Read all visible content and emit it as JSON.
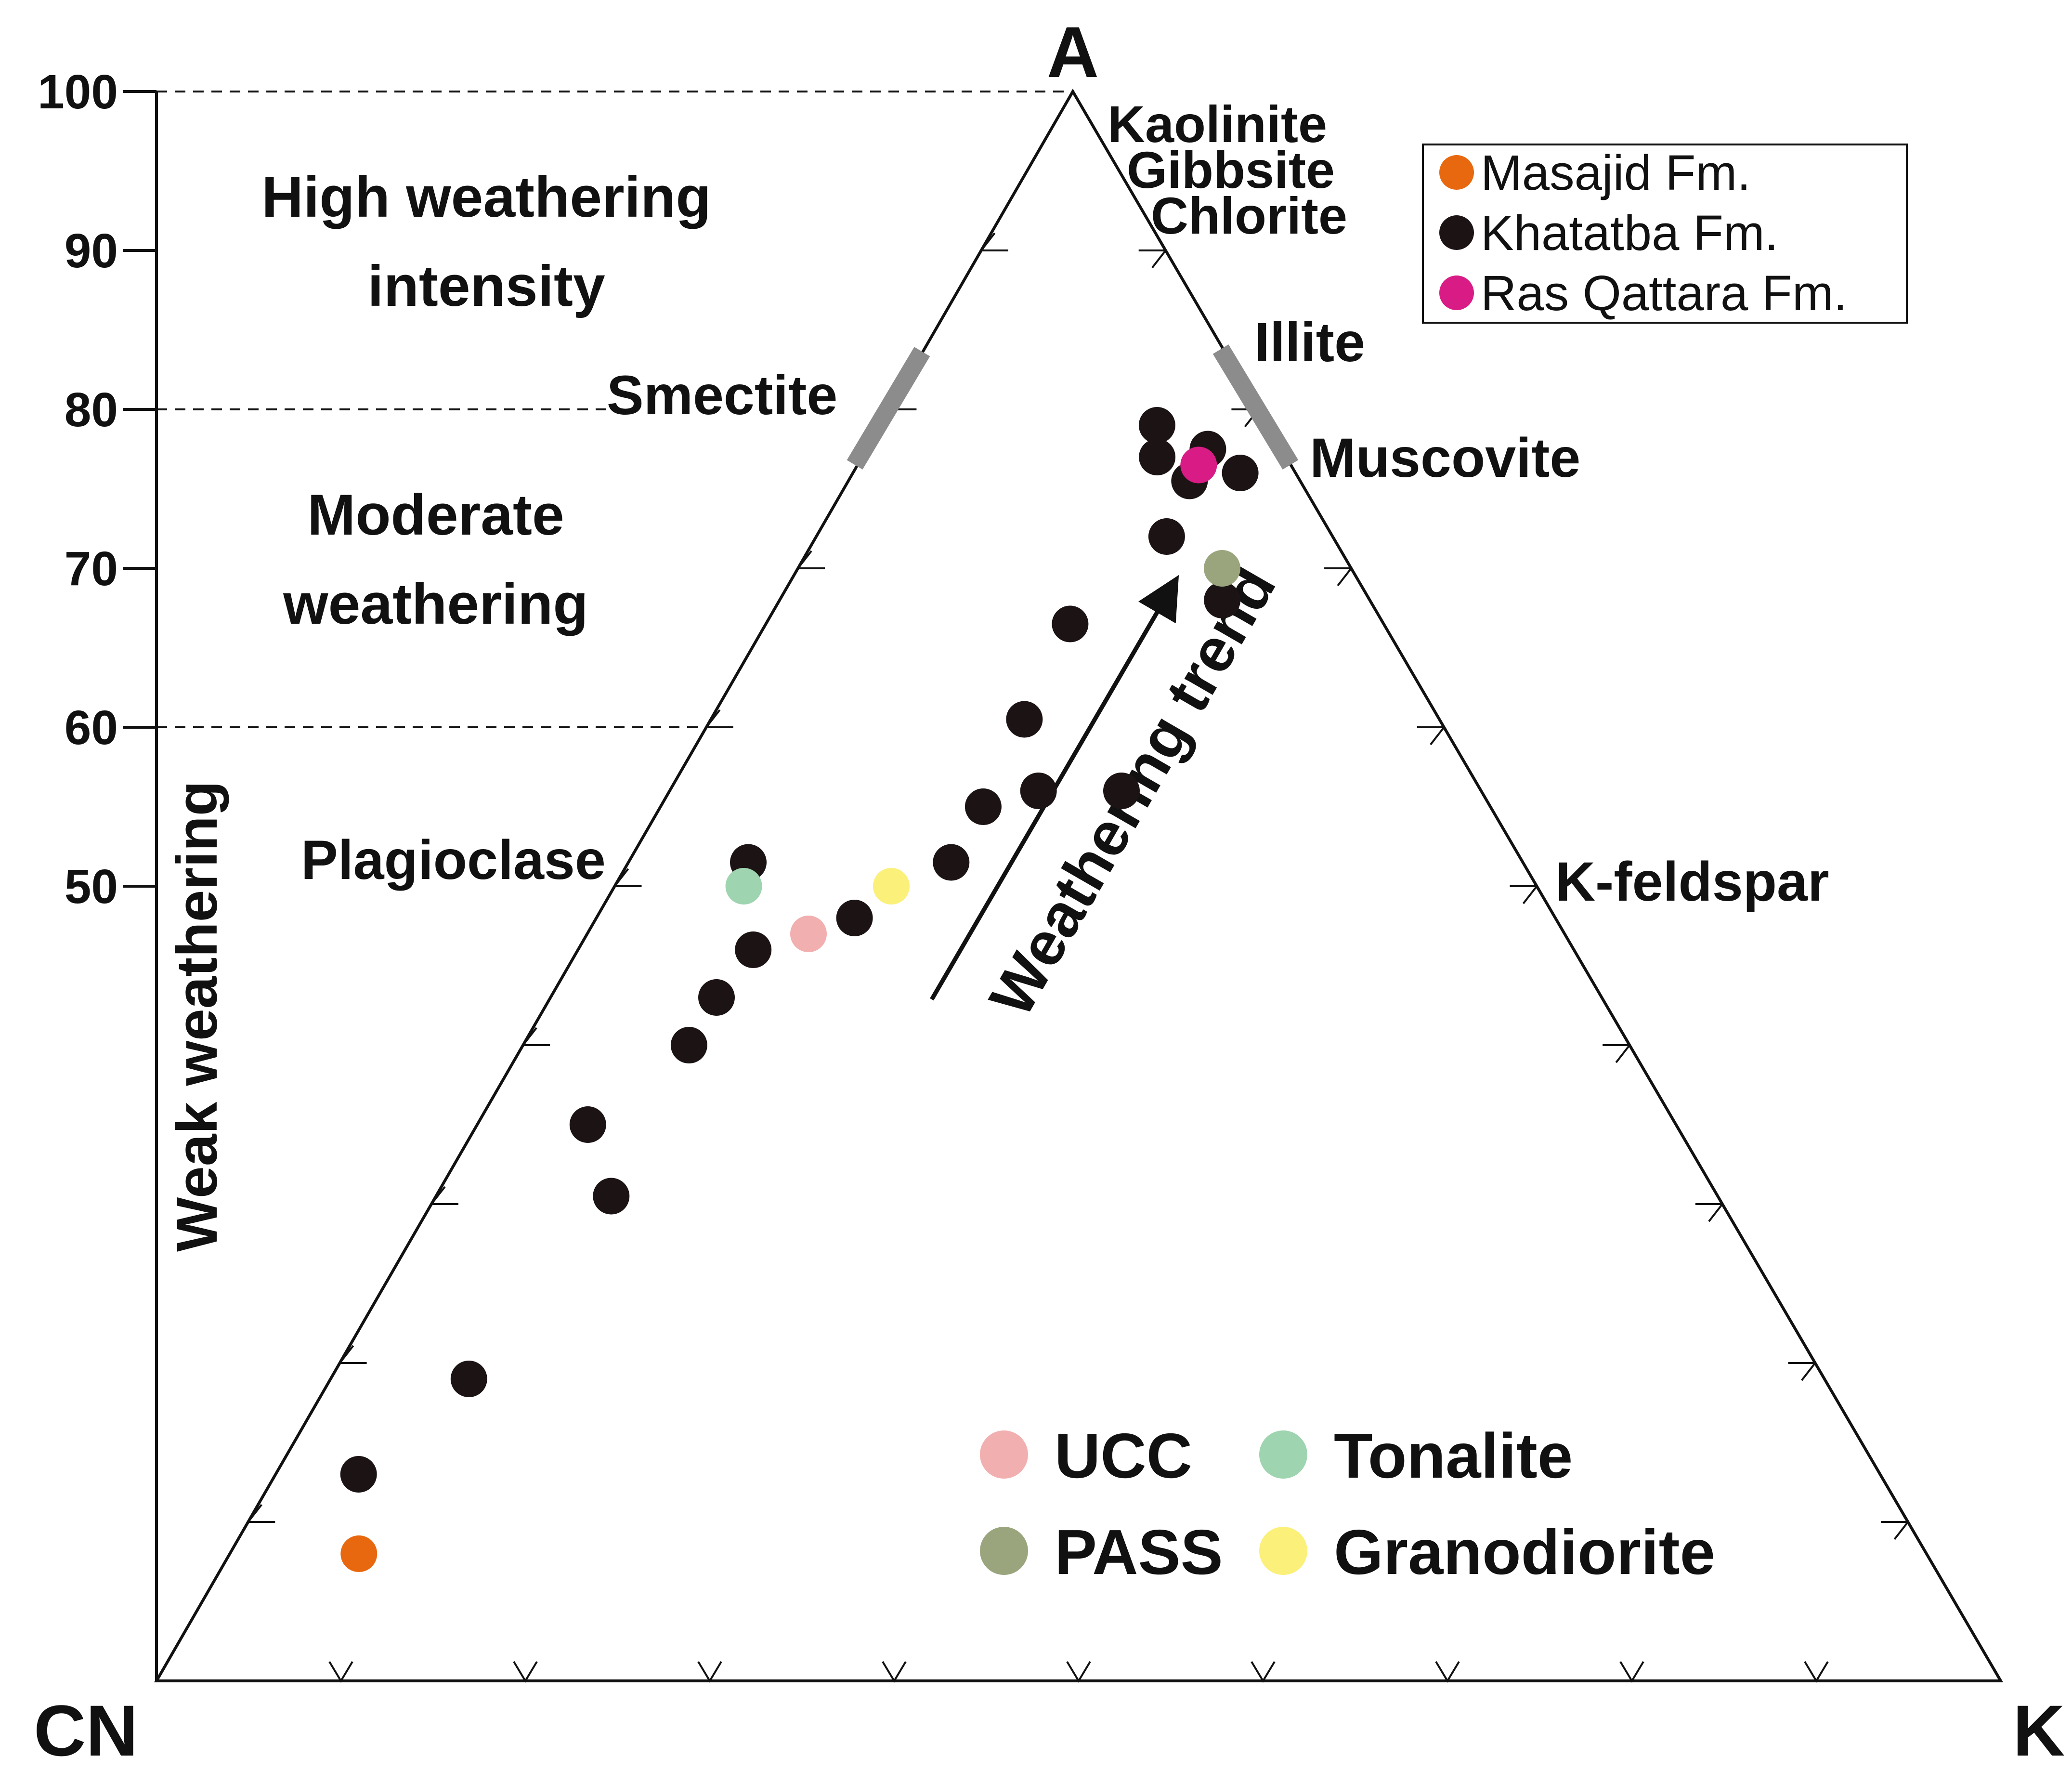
{
  "chart_data": {
    "type": "scatter",
    "subtype": "ternary",
    "vertices": {
      "top": "A",
      "bottom_left": "CN",
      "bottom_right": "K"
    },
    "cia_axis": {
      "ticks": [
        "100",
        "90",
        "80",
        "70",
        "60",
        "50"
      ],
      "tick_values": [
        100,
        90,
        80,
        70,
        60,
        50
      ]
    },
    "zones": {
      "high_line1": "High weathering",
      "high_line2": "intensity",
      "moderate_line1": "Moderate",
      "moderate_line2": "weathering",
      "weak": "Weak weathering"
    },
    "minerals": {
      "kaolinite": "Kaolinite",
      "gibbsite": "Gibbsite",
      "chlorite": "Chlorite",
      "illite": "Illite",
      "muscovite": "Muscovite",
      "smectite": "Smectite",
      "plagioclase": "Plagioclase",
      "kfeldspar": "K-feldspar"
    },
    "trend_label": "Weathering trend",
    "legend": [
      {
        "name": "Masajid Fm.",
        "color": "#E8680F"
      },
      {
        "name": "Khatatba Fm.",
        "color": "#1C1414"
      },
      {
        "name": "Ras Qattara Fm.",
        "color": "#D91C85"
      }
    ],
    "reference_legend": [
      {
        "name": "UCC",
        "color": "#F2AFAF"
      },
      {
        "name": "Tonalite",
        "color": "#9ED4AF"
      },
      {
        "name": "PASS",
        "color": "#9AA57E"
      },
      {
        "name": "Granodiorite",
        "color": "#FBF07A"
      }
    ],
    "series": [
      {
        "name": "Khatatba Fm.",
        "color": "#1C1414",
        "points": [
          {
            "A": 79,
            "CN": 6,
            "K": 15
          },
          {
            "A": 77,
            "CN": 7,
            "K": 16
          },
          {
            "A": 77.5,
            "CN": 4,
            "K": 18.5
          },
          {
            "A": 75.5,
            "CN": 6,
            "K": 18.5
          },
          {
            "A": 76,
            "CN": 3,
            "K": 21
          },
          {
            "A": 72,
            "CN": 9,
            "K": 19
          },
          {
            "A": 68,
            "CN": 8,
            "K": 24
          },
          {
            "A": 66.5,
            "CN": 17,
            "K": 16.5
          },
          {
            "A": 60.5,
            "CN": 22.5,
            "K": 17
          },
          {
            "A": 56,
            "CN": 24,
            "K": 20
          },
          {
            "A": 56,
            "CN": 19.5,
            "K": 24.5
          },
          {
            "A": 55,
            "CN": 27.5,
            "K": 17.5
          },
          {
            "A": 51.5,
            "CN": 31,
            "K": 17.5
          },
          {
            "A": 51.5,
            "CN": 42,
            "K": 6.5
          },
          {
            "A": 48,
            "CN": 38,
            "K": 14
          },
          {
            "A": 46,
            "CN": 44.5,
            "K": 9.5
          },
          {
            "A": 43,
            "CN": 48,
            "K": 9
          },
          {
            "A": 40,
            "CN": 51,
            "K": 9
          },
          {
            "A": 35,
            "CN": 59,
            "K": 6
          },
          {
            "A": 30.5,
            "CN": 60,
            "K": 9.5
          },
          {
            "A": 19,
            "CN": 73.5,
            "K": 7.5
          },
          {
            "A": 13,
            "CN": 82.5,
            "K": 4.5
          }
        ]
      },
      {
        "name": "Masajid Fm.",
        "color": "#E8680F",
        "points": [
          {
            "A": 8,
            "CN": 85,
            "K": 7
          }
        ]
      },
      {
        "name": "Ras Qattara Fm.",
        "color": "#D91C85",
        "points": [
          {
            "A": 76.5,
            "CN": 5,
            "K": 18.5
          }
        ]
      },
      {
        "name": "UCC",
        "color": "#F2AFAF",
        "points": [
          {
            "A": 47,
            "CN": 41,
            "K": 12
          }
        ]
      },
      {
        "name": "Tonalite",
        "color": "#9ED4AF",
        "points": [
          {
            "A": 50,
            "CN": 43,
            "K": 7
          }
        ]
      },
      {
        "name": "PASS",
        "color": "#9AA57E",
        "points": [
          {
            "A": 70,
            "CN": 7,
            "K": 23
          }
        ]
      },
      {
        "name": "Granodiorite",
        "color": "#FBF07A",
        "points": [
          {
            "A": 50,
            "CN": 35,
            "K": 15
          }
        ]
      }
    ]
  }
}
